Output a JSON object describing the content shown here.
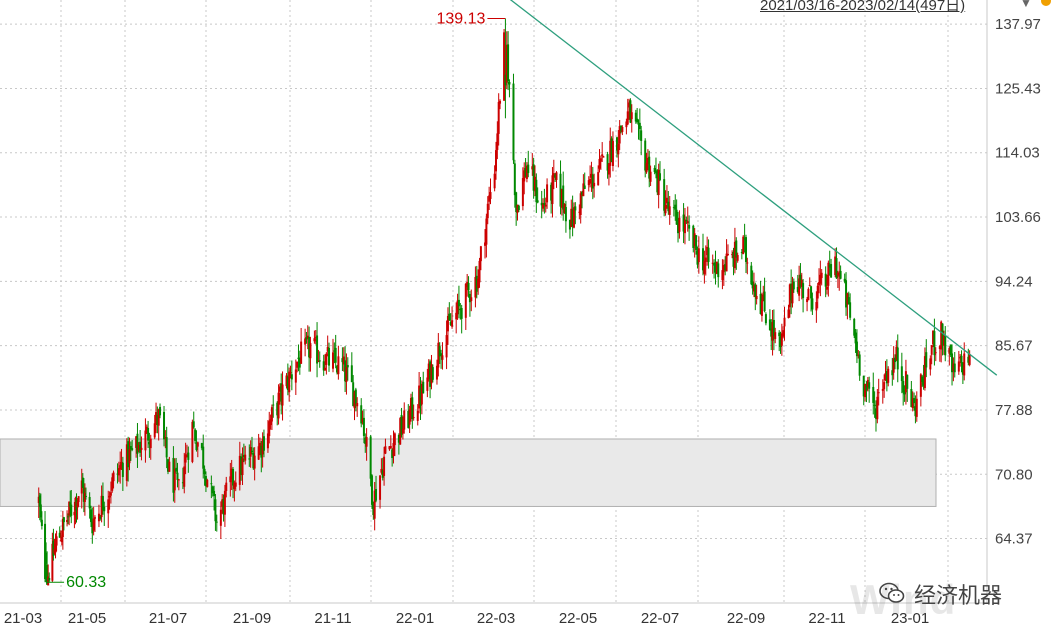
{
  "header": {
    "range_label": "2021/03/16-2023/02/14(497日)"
  },
  "watermark": {
    "text": "经济机器",
    "logo_text": "Wind"
  },
  "chart_data": {
    "type": "candlestick",
    "title": "",
    "xlabel": "",
    "ylabel": "",
    "ylim": [
      58.5,
      143
    ],
    "y_ticks": [
      "137.97",
      "125.43",
      "114.03",
      "103.66",
      "94.24",
      "85.67",
      "77.88",
      "70.80",
      "64.37"
    ],
    "x_ticks": [
      "21-03",
      "21-05",
      "21-07",
      "21-09",
      "21-11",
      "22-01",
      "22-03",
      "22-05",
      "22-07",
      "22-09",
      "22-11",
      "23-01"
    ],
    "grid": true,
    "colors": {
      "up": "#cc0000",
      "down": "#008800",
      "trendline": "#2e9f7e",
      "zone_fill": "#e9e9e9",
      "zone_stroke": "#b0b0b0"
    },
    "annotations": [
      {
        "label": "139.13",
        "date": "2022-03-08",
        "value": 139.13,
        "kind": "high"
      },
      {
        "label": "60.33",
        "date": "2021-03-23",
        "value": 60.33,
        "kind": "low"
      }
    ],
    "trendline": {
      "from": {
        "date": "2022-02-18",
        "value": 148.0
      },
      "to": {
        "date": "2023-03-06",
        "value": 82.0
      }
    },
    "zone": {
      "from_date": "2021-03-01",
      "to_date": "2023-02-28",
      "low": 67.5,
      "high": 74.6
    },
    "path": [
      [
        "2021-03-16",
        68
      ],
      [
        "2021-03-23",
        60.33
      ],
      [
        "2021-04-02",
        64
      ],
      [
        "2021-04-15",
        67
      ],
      [
        "2021-04-26",
        69.5
      ],
      [
        "2021-05-05",
        66
      ],
      [
        "2021-05-13",
        68
      ],
      [
        "2021-05-28",
        72
      ],
      [
        "2021-06-10",
        74
      ],
      [
        "2021-06-24",
        77
      ],
      [
        "2021-07-02",
        71
      ],
      [
        "2021-07-09",
        69
      ],
      [
        "2021-07-19",
        76
      ],
      [
        "2021-07-26",
        73
      ],
      [
        "2021-08-06",
        66
      ],
      [
        "2021-08-20",
        71
      ],
      [
        "2021-09-08",
        74
      ],
      [
        "2021-09-24",
        80
      ],
      [
        "2021-10-06",
        84
      ],
      [
        "2021-10-15",
        85.5
      ],
      [
        "2021-10-26",
        84
      ],
      [
        "2021-11-08",
        83
      ],
      [
        "2021-11-22",
        78
      ],
      [
        "2021-12-01",
        68
      ],
      [
        "2021-12-10",
        73
      ],
      [
        "2021-12-23",
        76
      ],
      [
        "2022-01-07",
        80
      ],
      [
        "2022-01-20",
        86
      ],
      [
        "2022-02-04",
        91
      ],
      [
        "2022-02-16",
        95
      ],
      [
        "2022-02-28",
        112
      ],
      [
        "2022-03-08",
        137
      ],
      [
        "2022-03-16",
        105
      ],
      [
        "2022-03-24",
        112
      ],
      [
        "2022-04-04",
        105
      ],
      [
        "2022-04-14",
        109
      ],
      [
        "2022-04-26",
        103
      ],
      [
        "2022-05-06",
        108
      ],
      [
        "2022-05-20",
        112
      ],
      [
        "2022-06-08",
        121
      ],
      [
        "2022-06-20",
        113
      ],
      [
        "2022-06-30",
        109
      ],
      [
        "2022-07-08",
        104
      ],
      [
        "2022-07-19",
        102
      ],
      [
        "2022-07-29",
        98
      ],
      [
        "2022-08-10",
        96
      ],
      [
        "2022-08-19",
        97
      ],
      [
        "2022-08-30",
        99
      ],
      [
        "2022-09-09",
        93
      ],
      [
        "2022-09-27",
        85
      ],
      [
        "2022-10-07",
        95
      ],
      [
        "2022-10-19",
        92
      ],
      [
        "2022-10-31",
        94
      ],
      [
        "2022-11-07",
        97
      ],
      [
        "2022-11-16",
        91
      ],
      [
        "2022-11-28",
        81
      ],
      [
        "2022-12-06",
        78
      ],
      [
        "2022-12-13",
        82
      ],
      [
        "2022-12-22",
        84
      ],
      [
        "2023-01-04",
        78
      ],
      [
        "2023-01-18",
        86
      ],
      [
        "2023-01-25",
        87
      ],
      [
        "2023-02-02",
        82
      ],
      [
        "2023-02-14",
        84.5
      ]
    ]
  }
}
